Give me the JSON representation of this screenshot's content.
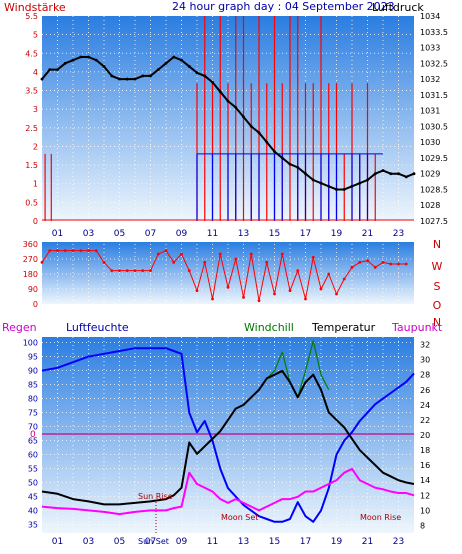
{
  "colors": {
    "wind_avg": "#0000ee",
    "wind_gust": "#ff0000",
    "pressure": "#000000",
    "direction": "#ff0000",
    "humidity": "#0000ff",
    "windchill": "#008000",
    "temperature": "#000000",
    "dewpoint": "#ff00ff",
    "zero_line": "#cc0080",
    "label_red": "#cc0000",
    "label_blue": "#0000aa",
    "label_magenta": "#cc00cc",
    "label_green": "#007700",
    "sun_moon": "#aa0000",
    "x_tick": "#000088",
    "grid": "#ffffff",
    "bg_top": "#2a7de1",
    "bg_bottom": "#eef6fd"
  },
  "header": {
    "left_label": "Windstärke",
    "title": "24 hour graph day : 04 September 2023",
    "right_label": "Luftdruck"
  },
  "direction_labels": [
    "N",
    "W",
    "S",
    "O",
    "N"
  ],
  "bottom_legend": {
    "regen": "Regen",
    "luftfeuchte": "Luftfeuchte",
    "windchill": "Windchill",
    "temperatur": "Temperatur",
    "taupunkt": "Taupunkt"
  },
  "annotations": {
    "sun_rise": "Sun Rise",
    "sun_set": "Sun Set",
    "moon_set": "Moon Set",
    "moon_rise": "Moon Rise",
    "zero": "0",
    "bottom_overlap": "Sun Ris"
  },
  "chart_data": [
    {
      "type": "line",
      "name": "wind_pressure",
      "x_ticks": [
        "01",
        "03",
        "05",
        "07",
        "09",
        "11",
        "13",
        "15",
        "17",
        "19",
        "21",
        "23"
      ],
      "y_left": {
        "ticks": [
          "0",
          "0.5",
          "1",
          "1.5",
          "2",
          "2.5",
          "3",
          "3.5",
          "4",
          "4.5",
          "5",
          "5.5"
        ],
        "range": [
          0,
          5.5
        ]
      },
      "y_right": {
        "ticks": [
          "1027.5",
          "1028",
          "1028.5",
          "1029",
          "1029.5",
          "1030",
          "1030.5",
          "1031",
          "1031.5",
          "1032",
          "1032.5",
          "1033",
          "1033.5",
          "1034"
        ],
        "range": [
          1027.5,
          1034
        ]
      },
      "xlim": [
        0,
        24
      ],
      "series": [
        {
          "name": "Luftdruck",
          "x": [
            0,
            0.5,
            1,
            1.5,
            2,
            2.5,
            3,
            3.5,
            4,
            4.5,
            5,
            5.5,
            6,
            6.5,
            7,
            7.5,
            8,
            8.5,
            9,
            9.5,
            10,
            10.5,
            11,
            11.5,
            12,
            12.5,
            13,
            13.5,
            14,
            14.5,
            15,
            15.5,
            16,
            16.5,
            17,
            17.5,
            18,
            18.5,
            19,
            19.5,
            20,
            20.5,
            21,
            21.5,
            22,
            22.5,
            23,
            23.5,
            24
          ],
          "values": [
            1032.0,
            1032.3,
            1032.3,
            1032.5,
            1032.6,
            1032.7,
            1032.7,
            1032.6,
            1032.4,
            1032.1,
            1032.0,
            1032.0,
            1032.0,
            1032.1,
            1032.1,
            1032.3,
            1032.5,
            1032.7,
            1032.6,
            1032.4,
            1032.2,
            1032.1,
            1031.9,
            1031.6,
            1031.3,
            1031.1,
            1030.8,
            1030.5,
            1030.3,
            1030.0,
            1029.7,
            1029.5,
            1029.3,
            1029.2,
            1029.0,
            1028.8,
            1028.7,
            1028.6,
            1028.5,
            1028.5,
            1028.6,
            1028.7,
            1028.8,
            1029.0,
            1029.1,
            1029.0,
            1029.0,
            1028.9,
            1029.0
          ]
        },
        {
          "name": "Wind avg",
          "x": [
            10.0,
            10.5,
            11,
            11.5,
            12,
            12.5,
            13,
            13.5,
            14,
            14.5,
            15,
            15.5,
            16,
            16.5,
            17,
            17.5,
            18,
            18.5,
            19,
            19.5,
            20,
            20.5,
            21,
            21.5,
            22
          ],
          "values": [
            1.8,
            0,
            1.8,
            0,
            1.8,
            1.8,
            0,
            1.8,
            1.8,
            0,
            1.8,
            1.8,
            0,
            1.8,
            1.8,
            0,
            1.8,
            1.8,
            1.8,
            0,
            1.8,
            1.8,
            1.8,
            0,
            0
          ]
        },
        {
          "name": "Wind gust",
          "x": [
            0.2,
            0.6,
            10.0,
            10.5,
            11,
            11.5,
            12,
            12.5,
            13,
            13.5,
            14,
            14.5,
            15,
            15.5,
            16,
            16.5,
            17,
            17.5,
            18,
            18.5,
            19,
            19.5,
            20,
            20.5,
            21,
            21.5
          ],
          "values": [
            1.8,
            1.8,
            3.7,
            5.5,
            3.7,
            5.5,
            3.7,
            5.5,
            5.5,
            3.7,
            5.5,
            3.7,
            5.5,
            3.7,
            5.5,
            5.5,
            3.7,
            3.7,
            5.5,
            3.7,
            3.7,
            1.8,
            3.7,
            1.8,
            3.7,
            1.8
          ]
        }
      ]
    },
    {
      "type": "line",
      "name": "wind_direction",
      "y_ticks": [
        "360",
        "270",
        "180",
        "90",
        "0"
      ],
      "range": [
        0,
        360
      ],
      "xlim": [
        0,
        24
      ],
      "series": [
        {
          "name": "direction",
          "x": [
            0,
            0.5,
            1,
            1.5,
            2,
            2.5,
            3,
            3.5,
            4,
            4.5,
            5,
            5.5,
            6,
            6.5,
            7,
            7.5,
            8,
            8.5,
            9,
            9.5,
            10,
            10.5,
            11,
            11.5,
            12,
            12.5,
            13,
            13.5,
            14,
            14.5,
            15,
            15.5,
            16,
            16.5,
            17,
            17.5,
            18,
            18.5,
            19,
            19.5,
            20,
            20.5,
            21,
            21.5,
            22,
            22.5,
            23,
            23.5
          ],
          "values": [
            250,
            320,
            320,
            320,
            320,
            320,
            320,
            320,
            250,
            200,
            200,
            200,
            200,
            200,
            200,
            300,
            320,
            250,
            300,
            200,
            80,
            250,
            30,
            300,
            100,
            270,
            40,
            300,
            20,
            250,
            60,
            300,
            80,
            200,
            30,
            280,
            90,
            180,
            60,
            150,
            220,
            250,
            260,
            220,
            250,
            240,
            240,
            240
          ]
        }
      ]
    },
    {
      "type": "line",
      "name": "humidity_temperature",
      "y_left": {
        "ticks": [
          "100",
          "95",
          "90",
          "85",
          "80",
          "75",
          "70",
          "65",
          "60",
          "55",
          "50",
          "45",
          "40",
          "35"
        ],
        "range": [
          32,
          102
        ]
      },
      "y_right": {
        "ticks": [
          "32",
          "30",
          "28",
          "26",
          "24",
          "22",
          "20",
          "18",
          "16",
          "14",
          "12",
          "10",
          "8"
        ],
        "range": [
          7,
          33
        ]
      },
      "xlim": [
        0,
        24
      ],
      "series": [
        {
          "name": "Luftfeuchte",
          "x": [
            0,
            1,
            2,
            3,
            4,
            5,
            6,
            7,
            8,
            8.5,
            9,
            9.5,
            10,
            10.5,
            11,
            11.5,
            12,
            12.5,
            13,
            13.5,
            14,
            14.5,
            15,
            15.5,
            16,
            16.5,
            17,
            17.5,
            18,
            18.5,
            19,
            19.5,
            20,
            20.5,
            21,
            21.5,
            22,
            22.5,
            23,
            23.5,
            24
          ],
          "values": [
            90,
            91,
            93,
            95,
            96,
            97,
            98,
            98,
            98,
            97,
            96,
            75,
            68,
            72,
            65,
            55,
            48,
            45,
            42,
            40,
            38,
            37,
            36,
            36,
            37,
            43,
            38,
            36,
            40,
            48,
            60,
            65,
            68,
            72,
            75,
            78,
            80,
            82,
            84,
            86,
            89
          ]
        },
        {
          "name": "Temperatur",
          "x": [
            0,
            1,
            2,
            3,
            4,
            5,
            6,
            7,
            8,
            8.5,
            9,
            9.5,
            10,
            10.5,
            11,
            11.5,
            12,
            12.5,
            13,
            13.5,
            14,
            14.5,
            15,
            15.5,
            16,
            16.5,
            17,
            17.5,
            18,
            18.5,
            19,
            19.5,
            20,
            20.5,
            21,
            21.5,
            22,
            22.5,
            23,
            23.5,
            24
          ],
          "values": [
            12.5,
            12.2,
            11.5,
            11.2,
            10.8,
            10.8,
            11.0,
            11.2,
            11.5,
            12.0,
            13.0,
            19.0,
            17.5,
            18.5,
            19.5,
            20.5,
            22.0,
            23.5,
            24.0,
            25.0,
            26.0,
            27.5,
            28.0,
            28.5,
            27.0,
            25.0,
            27.0,
            28.0,
            26.0,
            23.0,
            22.0,
            21.0,
            19.5,
            18.0,
            17.0,
            16.0,
            15.0,
            14.5,
            14.0,
            13.7,
            13.5
          ]
        },
        {
          "name": "Windchill",
          "x": [
            14.5,
            15,
            15.5,
            16,
            16.5,
            17,
            17.5,
            18,
            18.5
          ],
          "values": [
            27.5,
            28.5,
            31.0,
            27.0,
            25.0,
            28.5,
            32.5,
            28.0,
            26.0
          ]
        },
        {
          "name": "Taupunkt",
          "x": [
            0,
            1,
            2,
            3,
            4,
            5,
            6,
            7,
            8,
            8.5,
            9,
            9.5,
            10,
            10.5,
            11,
            11.5,
            12,
            12.5,
            13,
            13.5,
            14,
            14.5,
            15,
            15.5,
            16,
            16.5,
            17,
            17.5,
            18,
            18.5,
            19,
            19.5,
            20,
            20.5,
            21,
            21.5,
            22,
            22.5,
            23,
            23.5,
            24
          ],
          "values": [
            10.5,
            10.3,
            10.2,
            10.0,
            9.8,
            9.5,
            9.8,
            10.0,
            10.0,
            10.3,
            10.5,
            15.0,
            13.5,
            13.0,
            12.5,
            11.5,
            11.0,
            11.5,
            11.0,
            10.5,
            10.0,
            10.5,
            11.0,
            11.5,
            11.5,
            11.8,
            12.5,
            12.5,
            13.0,
            13.5,
            14.0,
            15.0,
            15.5,
            14.0,
            13.5,
            13.0,
            12.8,
            12.5,
            12.3,
            12.3,
            12.0
          ]
        }
      ]
    }
  ]
}
